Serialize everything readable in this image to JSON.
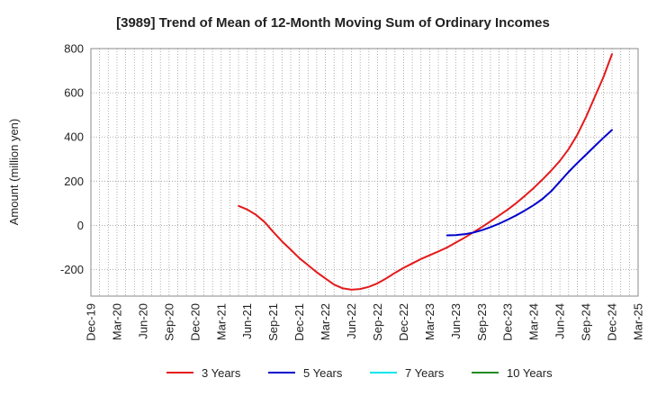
{
  "chart_data": {
    "type": "line",
    "title": "[3989]  Trend of Mean of 12-Month Moving Sum of Ordinary Incomes",
    "ylabel": "Amount (million yen)",
    "xlabel": "",
    "ylim": [
      -320,
      800
    ],
    "yticks": [
      800,
      600,
      400,
      200,
      0,
      -200
    ],
    "ytick_labels": [
      "800",
      "600",
      "400",
      "200",
      "0",
      "-200"
    ],
    "xticks": [
      "Dec-19",
      "Mar-20",
      "Jun-20",
      "Sep-20",
      "Dec-20",
      "Mar-21",
      "Jun-21",
      "Sep-21",
      "Dec-21",
      "Mar-22",
      "Jun-22",
      "Sep-22",
      "Dec-22",
      "Mar-23",
      "Jun-23",
      "Sep-23",
      "Dec-23",
      "Mar-24",
      "Jun-24",
      "Sep-24",
      "Dec-24",
      "Mar-25"
    ],
    "grid": true,
    "legend_position": "bottom",
    "series": [
      {
        "name": "3 Years",
        "color": "#e41a1c",
        "points": [
          [
            "May-21",
            88
          ],
          [
            "Jun-21",
            72
          ],
          [
            "Jul-21",
            48
          ],
          [
            "Aug-21",
            15
          ],
          [
            "Sep-21",
            -30
          ],
          [
            "Oct-21",
            -72
          ],
          [
            "Nov-21",
            -110
          ],
          [
            "Dec-21",
            -148
          ],
          [
            "Jan-22",
            -180
          ],
          [
            "Feb-22",
            -212
          ],
          [
            "Mar-22",
            -240
          ],
          [
            "Apr-22",
            -268
          ],
          [
            "May-22",
            -285
          ],
          [
            "Jun-22",
            -291
          ],
          [
            "Jul-22",
            -288
          ],
          [
            "Aug-22",
            -278
          ],
          [
            "Sep-22",
            -262
          ],
          [
            "Oct-22",
            -240
          ],
          [
            "Nov-22",
            -215
          ],
          [
            "Dec-22",
            -192
          ],
          [
            "Jan-23",
            -172
          ],
          [
            "Feb-23",
            -152
          ],
          [
            "Mar-23",
            -135
          ],
          [
            "Apr-23",
            -118
          ],
          [
            "May-23",
            -100
          ],
          [
            "Jun-23",
            -78
          ],
          [
            "Jul-23",
            -56
          ],
          [
            "Aug-23",
            -32
          ],
          [
            "Sep-23",
            -8
          ],
          [
            "Oct-23",
            18
          ],
          [
            "Nov-23",
            45
          ],
          [
            "Dec-23",
            72
          ],
          [
            "Jan-24",
            102
          ],
          [
            "Feb-24",
            135
          ],
          [
            "Mar-24",
            170
          ],
          [
            "Apr-24",
            208
          ],
          [
            "May-24",
            248
          ],
          [
            "Jun-24",
            292
          ],
          [
            "Jul-24",
            345
          ],
          [
            "Aug-24",
            410
          ],
          [
            "Sep-24",
            490
          ],
          [
            "Oct-24",
            580
          ],
          [
            "Nov-24",
            670
          ],
          [
            "Dec-24",
            775
          ]
        ]
      },
      {
        "name": "5 Years",
        "color": "#0000cc",
        "points": [
          [
            "May-23",
            -45
          ],
          [
            "Jun-23",
            -44
          ],
          [
            "Jul-23",
            -40
          ],
          [
            "Aug-23",
            -33
          ],
          [
            "Sep-23",
            -22
          ],
          [
            "Oct-23",
            -8
          ],
          [
            "Nov-23",
            8
          ],
          [
            "Dec-23",
            26
          ],
          [
            "Jan-24",
            46
          ],
          [
            "Feb-24",
            68
          ],
          [
            "Mar-24",
            92
          ],
          [
            "Apr-24",
            120
          ],
          [
            "May-24",
            155
          ],
          [
            "Jun-24",
            198
          ],
          [
            "Jul-24",
            242
          ],
          [
            "Aug-24",
            282
          ],
          [
            "Sep-24",
            320
          ],
          [
            "Oct-24",
            358
          ],
          [
            "Nov-24",
            396
          ],
          [
            "Dec-24",
            432
          ]
        ]
      },
      {
        "name": "7 Years",
        "color": "#00e5ee",
        "points": []
      },
      {
        "name": "10 Years",
        "color": "#228b22",
        "points": []
      }
    ]
  }
}
